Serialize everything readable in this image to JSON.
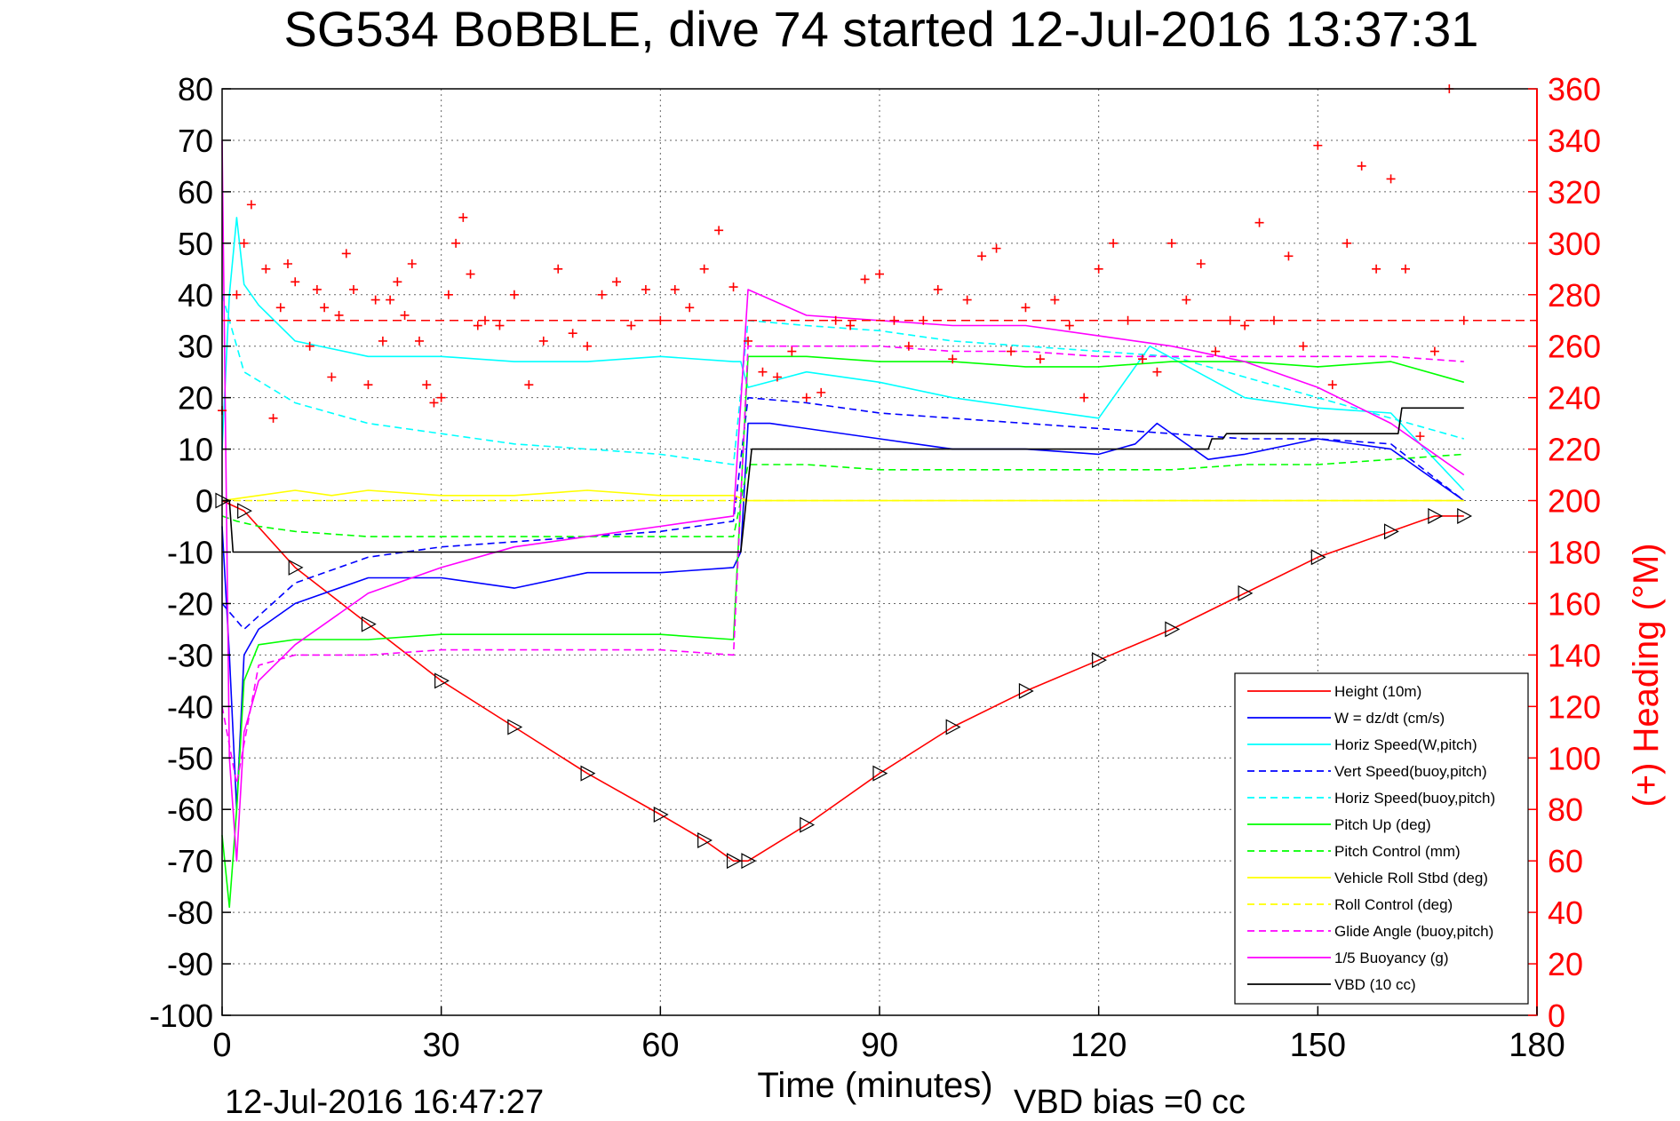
{
  "title": "SG534 BoBBLE, dive 74 started 12-Jul-2016 13:37:31",
  "footer_left": "12-Jul-2016 16:47:27",
  "footer_right": "VBD bias =0 cc",
  "colors": {
    "height": "#ff0000",
    "w": "#0000ff",
    "hspeed": "#00ffff",
    "pitch": "#00ff00",
    "roll": "#ffff00",
    "buoy": "#ff00ff",
    "vbd": "#000000",
    "heading": "#ff0000"
  },
  "chart_data": {
    "type": "line",
    "xlabel": "Time (minutes)",
    "ylabel": "",
    "y2label": "(+) Heading (°M)",
    "xlim": [
      0,
      180
    ],
    "ylim": [
      -100,
      80
    ],
    "y2lim": [
      0,
      360
    ],
    "xticks": [
      0,
      30,
      60,
      90,
      120,
      150,
      180
    ],
    "yticks": [
      80,
      70,
      60,
      50,
      40,
      30,
      20,
      10,
      0,
      -10,
      -20,
      -30,
      -40,
      -50,
      -60,
      -70,
      -80,
      -90,
      -100
    ],
    "y2ticks": [
      360,
      340,
      320,
      300,
      280,
      260,
      240,
      220,
      200,
      180,
      160,
      140,
      120,
      100,
      80,
      60,
      40,
      20,
      0
    ],
    "grid": true,
    "legend_position": "lower-right",
    "series": [
      {
        "name": "Height (10m)",
        "style": "solid",
        "color": "#ff0000",
        "x": [
          0,
          3,
          10,
          20,
          30,
          40,
          50,
          60,
          66,
          70,
          72,
          80,
          90,
          100,
          110,
          120,
          130,
          140,
          150,
          160,
          166,
          170
        ],
        "y": [
          0,
          -2,
          -13,
          -24,
          -35,
          -44,
          -53,
          -61,
          -66,
          -70,
          -70,
          -63,
          -53,
          -44,
          -37,
          -31,
          -25,
          -18,
          -11,
          -6,
          -3,
          -3
        ]
      },
      {
        "name": "W = dz/dt (cm/s)",
        "style": "solid",
        "color": "#0000ff",
        "x": [
          0,
          1,
          2,
          3,
          5,
          10,
          20,
          30,
          40,
          50,
          60,
          70,
          71,
          72,
          75,
          90,
          100,
          110,
          120,
          125,
          128,
          135,
          140,
          150,
          160,
          170
        ],
        "y": [
          -5,
          -30,
          -60,
          -30,
          -25,
          -20,
          -15,
          -15,
          -17,
          -14,
          -14,
          -13,
          -10,
          15,
          15,
          12,
          10,
          10,
          9,
          11,
          15,
          8,
          9,
          12,
          10,
          0
        ]
      },
      {
        "name": "Horiz Speed(W,pitch)",
        "style": "solid",
        "color": "#00ffff",
        "x": [
          0,
          1,
          2,
          3,
          5,
          10,
          20,
          30,
          40,
          50,
          60,
          70,
          71,
          72,
          80,
          90,
          100,
          110,
          120,
          127,
          140,
          150,
          160,
          170
        ],
        "y": [
          10,
          40,
          55,
          42,
          38,
          31,
          28,
          28,
          27,
          27,
          28,
          27,
          27,
          22,
          25,
          23,
          20,
          18,
          16,
          30,
          20,
          18,
          17,
          2
        ]
      },
      {
        "name": "Vert Speed(buoy,pitch)",
        "style": "dashed",
        "color": "#0000ff",
        "x": [
          0,
          3,
          10,
          20,
          30,
          40,
          50,
          60,
          70,
          72,
          80,
          90,
          100,
          110,
          120,
          130,
          140,
          150,
          160,
          170
        ],
        "y": [
          -20,
          -25,
          -16,
          -11,
          -9,
          -8,
          -7,
          -6,
          -4,
          20,
          19,
          17,
          16,
          15,
          14,
          13,
          12,
          12,
          11,
          0
        ]
      },
      {
        "name": "Horiz Speed(buoy,pitch)",
        "style": "dashed",
        "color": "#00ffff",
        "x": [
          0,
          3,
          10,
          20,
          30,
          40,
          50,
          60,
          70,
          72,
          80,
          90,
          100,
          110,
          120,
          130,
          140,
          150,
          160,
          170
        ],
        "y": [
          40,
          25,
          19,
          15,
          13,
          11,
          10,
          9,
          7,
          35,
          34,
          33,
          31,
          30,
          29,
          28,
          24,
          20,
          16,
          12
        ]
      },
      {
        "name": "Pitch Up (deg)",
        "style": "solid",
        "color": "#00ff00",
        "x": [
          0,
          1,
          2,
          3,
          5,
          10,
          20,
          30,
          40,
          50,
          60,
          70,
          72,
          80,
          90,
          100,
          110,
          120,
          130,
          140,
          150,
          160,
          170
        ],
        "y": [
          -65,
          -79,
          -60,
          -35,
          -28,
          -27,
          -27,
          -26,
          -26,
          -26,
          -26,
          -27,
          28,
          28,
          27,
          27,
          26,
          26,
          27,
          27,
          26,
          27,
          23
        ]
      },
      {
        "name": "Pitch Control (mm)",
        "style": "dashed",
        "color": "#00ff00",
        "x": [
          0,
          2,
          5,
          10,
          20,
          30,
          40,
          50,
          60,
          70,
          72,
          80,
          90,
          100,
          110,
          120,
          130,
          140,
          150,
          160,
          170
        ],
        "y": [
          -3,
          -4,
          -5,
          -6,
          -7,
          -7,
          -7,
          -7,
          -7,
          -7,
          7,
          7,
          6,
          6,
          6,
          6,
          6,
          7,
          7,
          8,
          9
        ]
      },
      {
        "name": "Vehicle Roll Stbd (deg)",
        "style": "solid",
        "color": "#ffff00",
        "x": [
          0,
          5,
          10,
          15,
          20,
          30,
          40,
          50,
          60,
          70,
          72,
          80,
          90,
          100,
          110,
          120,
          130,
          140,
          150,
          160,
          170
        ],
        "y": [
          0,
          1,
          2,
          1,
          2,
          1,
          1,
          2,
          1,
          1,
          0,
          0,
          0,
          0,
          0,
          0,
          0,
          0,
          0,
          0,
          0
        ]
      },
      {
        "name": "Roll Control (deg)",
        "style": "dashed",
        "color": "#ffff00",
        "x": [
          0,
          5,
          10,
          20,
          30,
          40,
          50,
          60,
          70,
          72,
          80,
          90,
          100,
          110,
          120,
          130,
          140,
          150,
          160,
          170
        ],
        "y": [
          0,
          0,
          0,
          0,
          0,
          0,
          0,
          0,
          0,
          0,
          0,
          0,
          0,
          0,
          0,
          0,
          0,
          0,
          0,
          0
        ]
      },
      {
        "name": "Glide Angle (buoy,pitch)",
        "style": "dashed",
        "color": "#ff00ff",
        "x": [
          0,
          2,
          5,
          10,
          20,
          30,
          40,
          50,
          60,
          70,
          72,
          80,
          90,
          100,
          110,
          120,
          130,
          140,
          150,
          160,
          170
        ],
        "y": [
          -40,
          -55,
          -32,
          -30,
          -30,
          -29,
          -29,
          -29,
          -29,
          -30,
          30,
          30,
          30,
          29,
          29,
          28,
          28,
          28,
          28,
          28,
          27
        ]
      },
      {
        "name": "1/5 Buoyancy (g)",
        "style": "solid",
        "color": "#ff00ff",
        "x": [
          0,
          1,
          2,
          3,
          5,
          10,
          20,
          30,
          40,
          50,
          60,
          70,
          72,
          80,
          90,
          100,
          110,
          120,
          130,
          140,
          150,
          160,
          170
        ],
        "y": [
          70,
          -50,
          -70,
          -45,
          -35,
          -28,
          -18,
          -13,
          -9,
          -7,
          -5,
          -3,
          41,
          36,
          35,
          34,
          34,
          32,
          30,
          27,
          22,
          15,
          5
        ]
      },
      {
        "name": "VBD (10 cc)",
        "style": "solid",
        "color": "#000000",
        "x": [
          0,
          1,
          1.5,
          70.5,
          71,
          72.5,
          73,
          135,
          135.5,
          137,
          137.5,
          161,
          161.5,
          170
        ],
        "y": [
          0,
          0,
          -10,
          -10,
          -10,
          10,
          10,
          10,
          12,
          12,
          13,
          13,
          18,
          18
        ]
      }
    ],
    "heading": {
      "name": "(+) Heading",
      "axis": "right",
      "marker": "+",
      "color": "#ff0000",
      "reference_value": 270,
      "x": [
        0,
        2,
        3,
        4,
        6,
        7,
        8,
        9,
        10,
        12,
        13,
        14,
        15,
        16,
        17,
        18,
        20,
        21,
        22,
        23,
        24,
        25,
        26,
        27,
        28,
        29,
        30,
        31,
        32,
        33,
        34,
        35,
        36,
        38,
        40,
        42,
        44,
        46,
        48,
        50,
        52,
        54,
        56,
        58,
        60,
        62,
        64,
        66,
        68,
        70,
        72,
        74,
        76,
        78,
        80,
        82,
        84,
        86,
        88,
        90,
        92,
        94,
        96,
        98,
        100,
        102,
        104,
        106,
        108,
        110,
        112,
        114,
        116,
        118,
        120,
        122,
        124,
        126,
        128,
        130,
        132,
        134,
        136,
        138,
        140,
        142,
        144,
        146,
        148,
        150,
        152,
        154,
        156,
        158,
        160,
        162,
        164,
        166,
        168,
        170
      ],
      "y": [
        235,
        280,
        300,
        315,
        290,
        232,
        275,
        292,
        285,
        260,
        282,
        275,
        248,
        272,
        296,
        282,
        245,
        278,
        262,
        278,
        285,
        272,
        292,
        262,
        245,
        238,
        240,
        280,
        300,
        310,
        288,
        268,
        270,
        268,
        280,
        245,
        262,
        290,
        265,
        260,
        280,
        285,
        268,
        282,
        270,
        282,
        275,
        290,
        305,
        283,
        262,
        250,
        248,
        258,
        240,
        242,
        270,
        268,
        286,
        288,
        270,
        260,
        270,
        282,
        255,
        278,
        295,
        298,
        258,
        275,
        255,
        278,
        268,
        240,
        290,
        300,
        270,
        255,
        250,
        300,
        278,
        292,
        258,
        270,
        268,
        308,
        270,
        295,
        260,
        338,
        245,
        300,
        330,
        290,
        325,
        290,
        225,
        258,
        360,
        270
      ]
    }
  }
}
